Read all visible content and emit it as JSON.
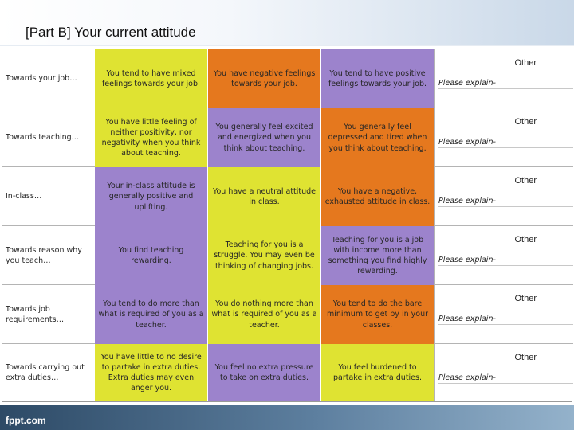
{
  "slide": {
    "title": "[Part B] Your current attitude",
    "footer": "fppt.com"
  },
  "colors": {
    "yellow": "#dfe332",
    "orange": "#e5781e",
    "purple": "#9c83cc",
    "footer_bar": "#3f5f7f"
  },
  "rows": [
    {
      "label": "Towards your job…",
      "options": [
        {
          "text": "You tend to have mixed feelings towards your job.",
          "color": "yellow"
        },
        {
          "text": "You have negative feelings towards your job.",
          "color": "orange"
        },
        {
          "text": "You tend to have positive feelings towards your job.",
          "color": "purple"
        }
      ],
      "other": "Other",
      "explain": "Please explain-"
    },
    {
      "label": "Towards teaching…",
      "options": [
        {
          "text": "You have little feeling of neither positivity, nor negativity when you think about teaching.",
          "color": "yellow"
        },
        {
          "text": "You generally feel excited and energized when you think about teaching.",
          "color": "purple"
        },
        {
          "text": "You generally feel depressed and tired when you think about teaching.",
          "color": "orange"
        }
      ],
      "other": "Other",
      "explain": "Please explain-"
    },
    {
      "label": "In-class…",
      "options": [
        {
          "text": "Your in-class attitude is generally positive and uplifting.",
          "color": "purple"
        },
        {
          "text": "You have a neutral attitude in class.",
          "color": "yellow"
        },
        {
          "text": "You have a negative, exhausted attitude in class.",
          "color": "orange"
        }
      ],
      "other": "Other",
      "explain": "Please explain-"
    },
    {
      "label": "Towards reason why you teach…",
      "options": [
        {
          "text": "You find teaching rewarding.",
          "color": "purple"
        },
        {
          "text": "Teaching for you is a struggle. You may even be thinking of changing jobs.",
          "color": "yellow"
        },
        {
          "text": "Teaching for you is a job with income more than something you find highly rewarding.",
          "color": "purple"
        }
      ],
      "other": "Other",
      "explain": "Please explain-"
    },
    {
      "label": "Towards job requirements…",
      "options": [
        {
          "text": "You tend to do more than what is required of you as a teacher.",
          "color": "purple"
        },
        {
          "text": "You do nothing more than what is required of you as a teacher.",
          "color": "yellow"
        },
        {
          "text": "You tend to do the bare minimum to get by in your classes.",
          "color": "orange"
        }
      ],
      "other": "Other",
      "explain": "Please explain-"
    },
    {
      "label": "Towards carrying out extra duties…",
      "options": [
        {
          "text": "You have little to no desire to partake in extra duties. Extra duties may even anger you.",
          "color": "yellow"
        },
        {
          "text": "You feel no extra pressure to take on extra duties.",
          "color": "purple"
        },
        {
          "text": "You feel burdened to partake in extra duties.",
          "color": "yellow"
        }
      ],
      "other": "Other",
      "explain": "Please explain-"
    }
  ]
}
